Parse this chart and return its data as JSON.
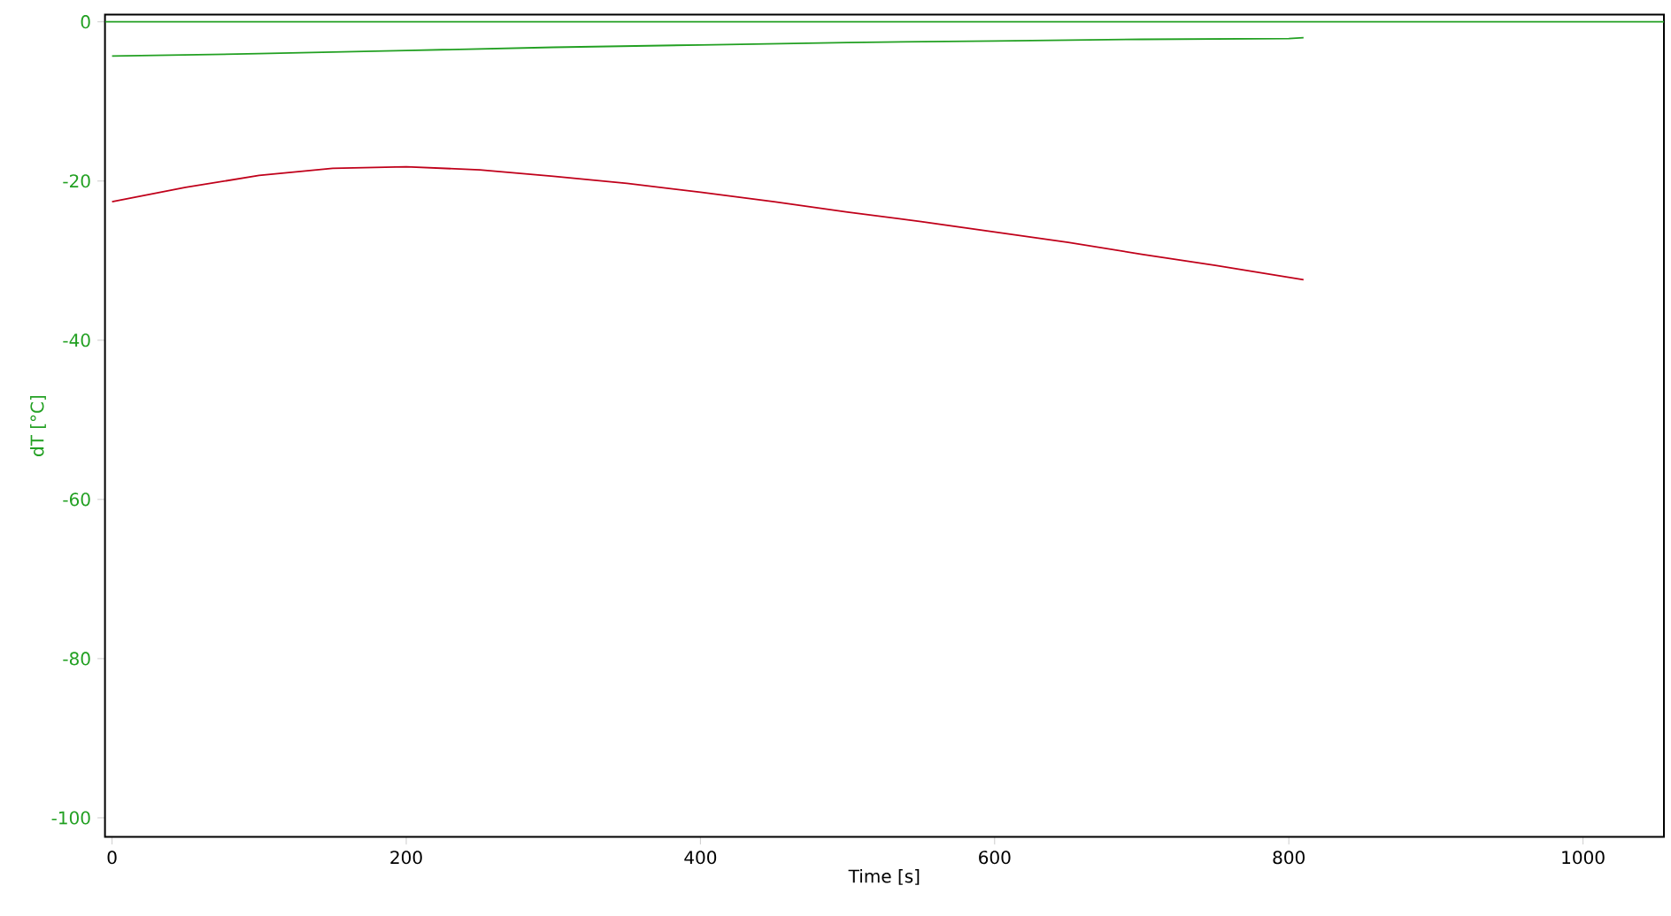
{
  "chart_data": {
    "type": "line",
    "xlabel": "Time [s]",
    "ylabel": "dT [°C]",
    "xlim": [
      -4.8,
      1055
    ],
    "ylim": [
      -102.4,
      0.9
    ],
    "xticks": [
      0,
      200,
      400,
      600,
      800,
      1000
    ],
    "yticks": [
      0,
      -20,
      -40,
      -60,
      -80,
      -100
    ],
    "grid": false,
    "marker": "none",
    "line_style": "solid",
    "ref_lines": [
      {
        "axis": "y",
        "value": 0,
        "color": "#22a022"
      }
    ],
    "series": [
      {
        "color": "#22a022",
        "x": [
          0,
          100,
          200,
          300,
          400,
          500,
          600,
          700,
          800,
          810
        ],
        "values": [
          -4.3,
          -4.0,
          -3.6,
          -3.2,
          -2.9,
          -2.6,
          -2.4,
          -2.2,
          -2.1,
          -2.0
        ]
      },
      {
        "color": "#c0001a",
        "x": [
          0,
          50,
          100,
          150,
          200,
          250,
          300,
          350,
          400,
          450,
          500,
          550,
          600,
          650,
          700,
          750,
          810
        ],
        "values": [
          -22.6,
          -20.8,
          -19.3,
          -18.4,
          -18.2,
          -18.6,
          -19.4,
          -20.3,
          -21.4,
          -22.6,
          -23.9,
          -25.1,
          -26.4,
          -27.7,
          -29.2,
          -30.6,
          -32.4
        ]
      }
    ]
  }
}
